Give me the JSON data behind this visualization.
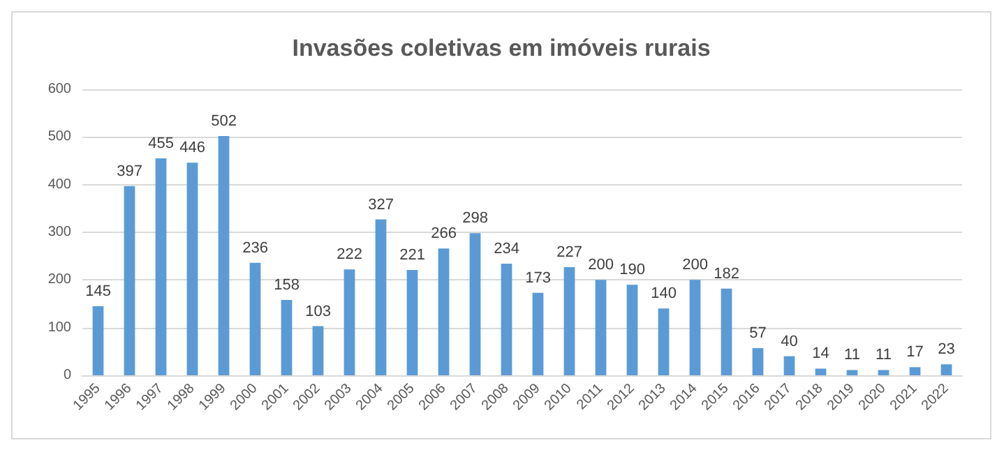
{
  "chart_data": {
    "type": "bar",
    "title": "Invasões coletivas em imóveis rurais",
    "categories": [
      "1995",
      "1996",
      "1997",
      "1998",
      "1999",
      "2000",
      "2001",
      "2002",
      "2003",
      "2004",
      "2005",
      "2006",
      "2007",
      "2008",
      "2009",
      "2010",
      "2011",
      "2012",
      "2013",
      "2014",
      "2015",
      "2016",
      "2017",
      "2018",
      "2019",
      "2020",
      "2021",
      "2022"
    ],
    "values": [
      145,
      397,
      455,
      446,
      502,
      236,
      158,
      103,
      222,
      327,
      221,
      266,
      298,
      234,
      173,
      227,
      200,
      190,
      140,
      200,
      182,
      57,
      40,
      14,
      11,
      11,
      17,
      23
    ],
    "color": "#5b9bd5",
    "ylim": [
      0,
      600
    ],
    "yticks": [
      0,
      100,
      200,
      300,
      400,
      500,
      600
    ],
    "grid": "y",
    "data_labels": true
  }
}
